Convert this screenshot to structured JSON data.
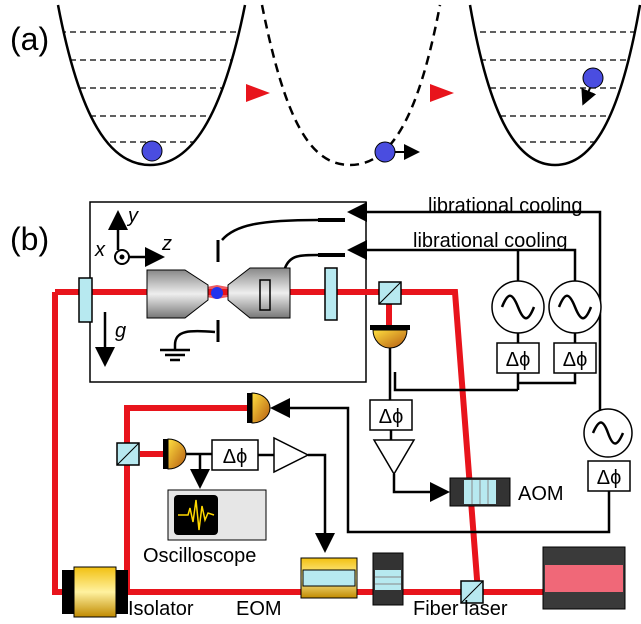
{
  "panels": {
    "a": "(a)",
    "b": "(b)"
  },
  "axes": {
    "x": "x",
    "y": "y",
    "z": "z",
    "g": "g"
  },
  "feedback": [
    "librational cooling",
    "librational cooling"
  ],
  "phase_shifters": [
    "Δϕ",
    "Δϕ",
    "Δϕ",
    "Δϕ",
    "Δϕ"
  ],
  "components": {
    "aom": "AOM",
    "oscilloscope": "Oscilloscope",
    "isolator": "Isolator",
    "eom": "EOM",
    "laser": "Fiber laser"
  }
}
